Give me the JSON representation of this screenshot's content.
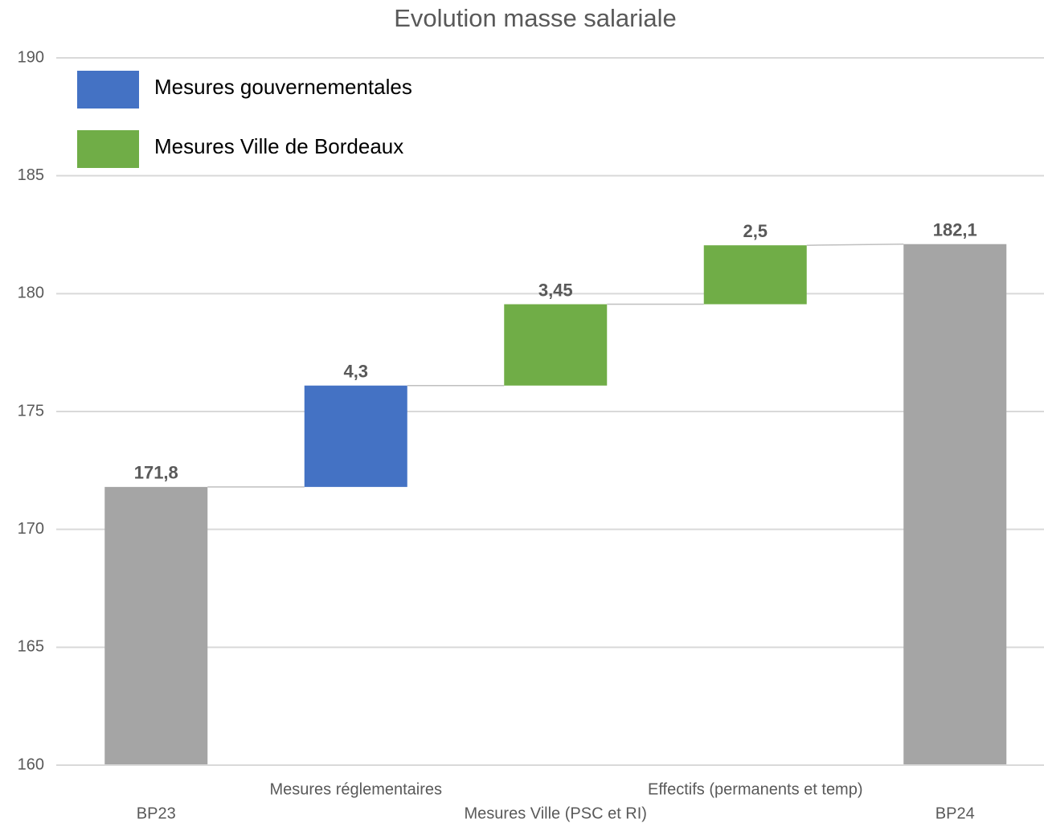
{
  "chart_data": {
    "type": "waterfall",
    "title": "Evolution masse salariale",
    "categories": [
      "BP23",
      "Mesures réglementaires",
      "Mesures Ville (PSC et RI)",
      "Effectifs (permanents et temp)",
      "BP24"
    ],
    "values": [
      171.8,
      4.3,
      3.45,
      2.5,
      182.1
    ],
    "value_labels": [
      "171,8",
      "4,3",
      "3,45",
      "2,5",
      "182,1"
    ],
    "measures": [
      "total",
      "relative",
      "relative",
      "relative",
      "total"
    ],
    "colors": [
      "#a5a5a5",
      "#4472c4",
      "#70ad47",
      "#70ad47",
      "#a5a5a5"
    ],
    "legend": [
      {
        "name": "Mesures gouvernementales",
        "color": "#4472c4"
      },
      {
        "name": "Mesures Ville de Bordeaux",
        "color": "#70ad47"
      }
    ],
    "ylim": [
      160,
      190
    ],
    "yticks": [
      160,
      165,
      170,
      175,
      180,
      185,
      190
    ],
    "grid": true
  }
}
